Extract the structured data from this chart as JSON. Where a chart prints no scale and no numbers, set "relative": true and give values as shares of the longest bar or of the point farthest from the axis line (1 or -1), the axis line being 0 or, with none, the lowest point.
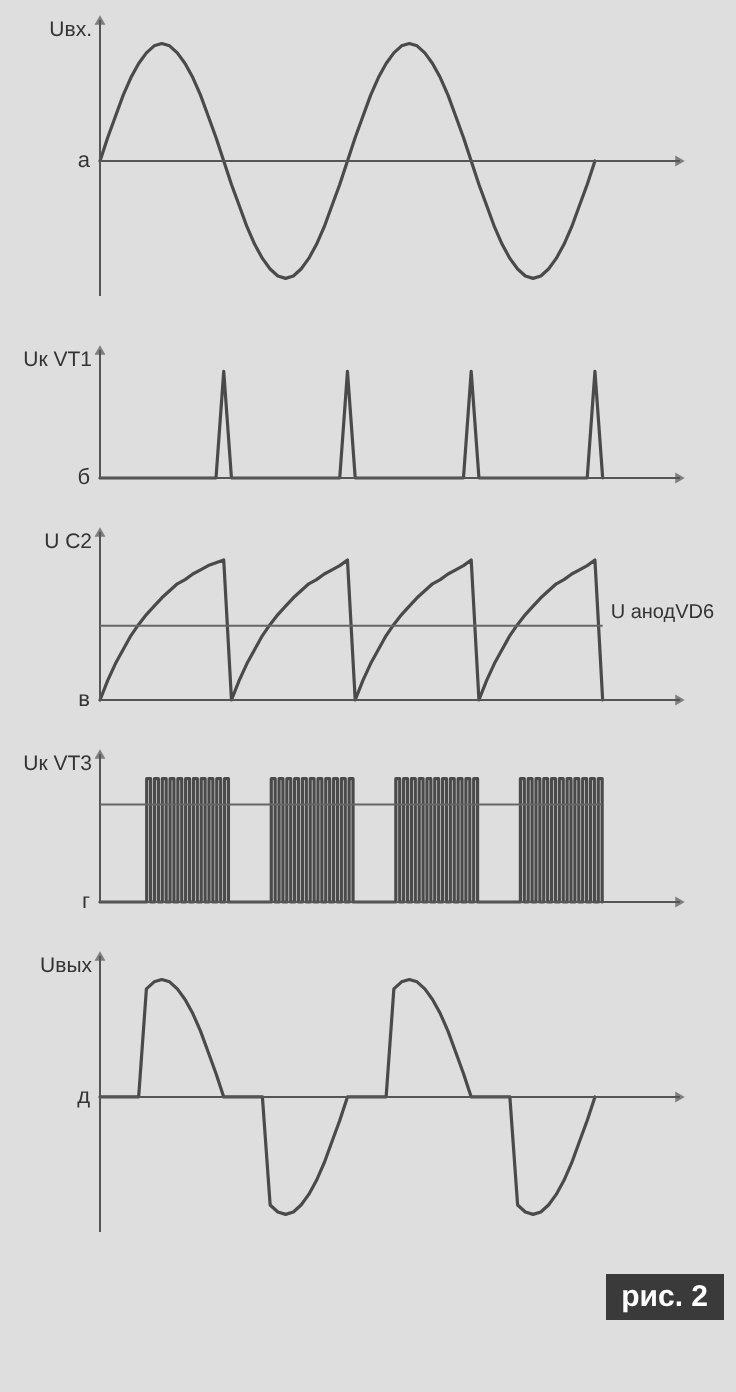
{
  "chart_data": [
    {
      "type": "line",
      "ylabel": "Uвх.",
      "annotations": [
        "а"
      ],
      "relative": true,
      "tick_labels": false,
      "categories": [
        null,
        null,
        null,
        null,
        null,
        null,
        null,
        null,
        null,
        null,
        null,
        null,
        null,
        null,
        null,
        null,
        null,
        null,
        null,
        null,
        null,
        null,
        null,
        null,
        null,
        null,
        null,
        null,
        null,
        null,
        null,
        null,
        null,
        null,
        null,
        null,
        null,
        null,
        null,
        null,
        null,
        null,
        null,
        null,
        null,
        null,
        null,
        null,
        null,
        null,
        null,
        null,
        null,
        null,
        null,
        null,
        null,
        null,
        null,
        null,
        null,
        null,
        null,
        null,
        null,
        null,
        null,
        null,
        null,
        null,
        null,
        null,
        null,
        null,
        null,
        null
      ],
      "series": [
        {
          "color": "#4a4a4a",
          "values": [
            0,
            0.2,
            0.38,
            0.56,
            0.71,
            0.83,
            0.92,
            0.98,
            1,
            0.98,
            0.92,
            0.83,
            0.71,
            0.56,
            0.38,
            0.2,
            0,
            -0.2,
            -0.38,
            -0.56,
            -0.71,
            -0.83,
            -0.92,
            -0.98,
            -1,
            -0.98,
            -0.92,
            -0.83,
            -0.71,
            -0.56,
            -0.38,
            -0.2,
            0,
            0.2,
            0.38,
            0.56,
            0.71,
            0.83,
            0.92,
            0.98,
            1,
            0.98,
            0.92,
            0.83,
            0.71,
            0.56,
            0.38,
            0.2,
            0,
            -0.2,
            -0.38,
            -0.56,
            -0.71,
            -0.83,
            -0.92,
            -0.98,
            -1,
            -0.98,
            -0.92,
            -0.83,
            -0.71,
            -0.56,
            -0.38,
            -0.2,
            0,
            null,
            null,
            null,
            null,
            null,
            null,
            null,
            null,
            null,
            null,
            null
          ]
        }
      ]
    },
    {
      "type": "line",
      "ylabel": "Uк VT1",
      "annotations": [
        "б"
      ],
      "relative": true,
      "tick_labels": false,
      "categories": [
        null,
        null,
        null,
        null,
        null,
        null,
        null,
        null,
        null,
        null,
        null,
        null,
        null,
        null,
        null,
        null,
        null,
        null,
        null,
        null,
        null,
        null,
        null,
        null,
        null,
        null,
        null,
        null,
        null,
        null,
        null,
        null,
        null,
        null,
        null,
        null,
        null,
        null,
        null,
        null,
        null,
        null,
        null,
        null,
        null,
        null,
        null,
        null,
        null,
        null,
        null,
        null,
        null,
        null,
        null,
        null,
        null,
        null,
        null,
        null,
        null,
        null,
        null,
        null,
        null,
        null,
        null,
        null,
        null,
        null,
        null,
        null,
        null,
        null,
        null,
        null
      ],
      "series": [
        {
          "color": "#4a4a4a",
          "values": [
            0,
            0,
            0,
            0,
            0,
            0,
            0,
            0,
            0,
            0,
            0,
            0,
            0,
            0,
            0,
            0,
            1,
            0,
            0,
            0,
            0,
            0,
            0,
            0,
            0,
            0,
            0,
            0,
            0,
            0,
            0,
            0,
            1,
            0,
            0,
            0,
            0,
            0,
            0,
            0,
            0,
            0,
            0,
            0,
            0,
            0,
            0,
            0,
            1,
            0,
            0,
            0,
            0,
            0,
            0,
            0,
            0,
            0,
            0,
            0,
            0,
            0,
            0,
            0,
            1,
            0,
            null,
            null,
            null,
            null,
            null,
            null,
            null,
            null,
            null,
            null
          ]
        }
      ]
    },
    {
      "type": "line",
      "ylabel": "U C2",
      "annotations": [
        "в"
      ],
      "relative": true,
      "tick_labels": false,
      "ref_lines": [
        {
          "axis": "y",
          "value": 0.53,
          "label": "U анодVD6"
        }
      ],
      "categories": [
        null,
        null,
        null,
        null,
        null,
        null,
        null,
        null,
        null,
        null,
        null,
        null,
        null,
        null,
        null,
        null,
        null,
        null,
        null,
        null,
        null,
        null,
        null,
        null,
        null,
        null,
        null,
        null,
        null,
        null,
        null,
        null,
        null,
        null,
        null,
        null,
        null,
        null,
        null,
        null,
        null,
        null,
        null,
        null,
        null,
        null,
        null,
        null,
        null,
        null,
        null,
        null,
        null,
        null,
        null,
        null,
        null,
        null,
        null,
        null,
        null,
        null,
        null,
        null,
        null,
        null,
        null,
        null,
        null,
        null,
        null,
        null,
        null,
        null,
        null,
        null
      ],
      "series": [
        {
          "color": "#4a4a4a",
          "values": [
            0,
            0.14,
            0.26,
            0.36,
            0.46,
            0.54,
            0.61,
            0.67,
            0.73,
            0.78,
            0.83,
            0.86,
            0.9,
            0.93,
            0.96,
            0.98,
            1,
            0,
            0.14,
            0.26,
            0.36,
            0.46,
            0.54,
            0.61,
            0.67,
            0.73,
            0.78,
            0.83,
            0.86,
            0.9,
            0.93,
            0.96,
            1,
            0,
            0.14,
            0.26,
            0.36,
            0.46,
            0.54,
            0.61,
            0.67,
            0.73,
            0.78,
            0.83,
            0.86,
            0.9,
            0.93,
            0.96,
            1,
            0,
            0.14,
            0.26,
            0.36,
            0.46,
            0.54,
            0.61,
            0.67,
            0.73,
            0.78,
            0.83,
            0.86,
            0.9,
            0.93,
            0.96,
            1,
            0,
            null,
            null,
            null,
            null,
            null,
            null,
            null,
            null,
            null,
            null
          ]
        }
      ]
    },
    {
      "type": "step",
      "ylabel": "Uк VT3",
      "annotations": [
        "г"
      ],
      "relative": true,
      "tick_labels": false,
      "ref_lines": [
        {
          "axis": "y",
          "value": 0.79
        }
      ],
      "categories": [
        null,
        null,
        null,
        null,
        null,
        null,
        null,
        null,
        null,
        null,
        null,
        null,
        null,
        null,
        null,
        null,
        null,
        null,
        null,
        null,
        null,
        null,
        null,
        null,
        null,
        null,
        null,
        null,
        null,
        null,
        null,
        null,
        null,
        null,
        null,
        null,
        null,
        null,
        null,
        null,
        null,
        null,
        null,
        null,
        null,
        null,
        null,
        null,
        null,
        null,
        null,
        null,
        null,
        null,
        null,
        null,
        null,
        null,
        null,
        null,
        null,
        null,
        null,
        null,
        null,
        null,
        null,
        null,
        null,
        null,
        null,
        null,
        null,
        null,
        null,
        null,
        null,
        null,
        null,
        null,
        null,
        null,
        null,
        null,
        null,
        null,
        null,
        null,
        null,
        null,
        null,
        null,
        null,
        null,
        null,
        null,
        null,
        null,
        null,
        null,
        null,
        null,
        null,
        null,
        null,
        null,
        null,
        null,
        null,
        null,
        null,
        null,
        null,
        null,
        null,
        null,
        null,
        null,
        null,
        null,
        null,
        null,
        null,
        null,
        null,
        null,
        null,
        null,
        null,
        null,
        null,
        null,
        null,
        null,
        null,
        null,
        null,
        null,
        null,
        null,
        null,
        null,
        null,
        null,
        null,
        null,
        null,
        null,
        null,
        null
      ],
      "series": [
        {
          "color": "#4a4a4a",
          "values": [
            0,
            0,
            0,
            0,
            0,
            0,
            0,
            0,
            0,
            0,
            0,
            0,
            1,
            0,
            1,
            0,
            1,
            0,
            1,
            0,
            1,
            0,
            1,
            0,
            1,
            0,
            1,
            0,
            1,
            0,
            1,
            0,
            1,
            0,
            0,
            0,
            0,
            0,
            0,
            0,
            0,
            0,
            0,
            0,
            1,
            0,
            1,
            0,
            1,
            0,
            1,
            0,
            1,
            0,
            1,
            0,
            1,
            0,
            1,
            0,
            1,
            0,
            1,
            0,
            1,
            0,
            0,
            0,
            0,
            0,
            0,
            0,
            0,
            0,
            0,
            0,
            1,
            0,
            1,
            0,
            1,
            0,
            1,
            0,
            1,
            0,
            1,
            0,
            1,
            0,
            1,
            0,
            1,
            0,
            1,
            0,
            1,
            0,
            0,
            0,
            0,
            0,
            0,
            0,
            0,
            0,
            0,
            0,
            1,
            0,
            1,
            0,
            1,
            0,
            1,
            0,
            1,
            0,
            1,
            0,
            1,
            0,
            1,
            0,
            1,
            0,
            1,
            0,
            1,
            0,
            null,
            null,
            null,
            null,
            null,
            null,
            null,
            null,
            null,
            null,
            null,
            null,
            null,
            null,
            null,
            null,
            null,
            null,
            null,
            null
          ]
        }
      ]
    },
    {
      "type": "line",
      "ylabel": "Uвых",
      "annotations": [
        "д",
        "рис. 2"
      ],
      "relative": true,
      "tick_labels": false,
      "categories": [
        null,
        null,
        null,
        null,
        null,
        null,
        null,
        null,
        null,
        null,
        null,
        null,
        null,
        null,
        null,
        null,
        null,
        null,
        null,
        null,
        null,
        null,
        null,
        null,
        null,
        null,
        null,
        null,
        null,
        null,
        null,
        null,
        null,
        null,
        null,
        null,
        null,
        null,
        null,
        null,
        null,
        null,
        null,
        null,
        null,
        null,
        null,
        null,
        null,
        null,
        null,
        null,
        null,
        null,
        null,
        null,
        null,
        null,
        null,
        null,
        null,
        null,
        null,
        null,
        null,
        null,
        null,
        null,
        null,
        null,
        null,
        null,
        null,
        null,
        null,
        null
      ],
      "series": [
        {
          "color": "#4a4a4a",
          "values": [
            0,
            0,
            0,
            0,
            0,
            0,
            0.92,
            0.98,
            1,
            0.98,
            0.92,
            0.83,
            0.71,
            0.56,
            0.38,
            0.2,
            0,
            0,
            0,
            0,
            0,
            0,
            -0.92,
            -0.98,
            -1,
            -0.98,
            -0.92,
            -0.83,
            -0.71,
            -0.56,
            -0.38,
            -0.2,
            0,
            0,
            0,
            0,
            0,
            0,
            0.92,
            0.98,
            1,
            0.98,
            0.92,
            0.83,
            0.71,
            0.56,
            0.38,
            0.2,
            0,
            0,
            0,
            0,
            0,
            0,
            -0.92,
            -0.98,
            -1,
            -0.98,
            -0.92,
            -0.83,
            -0.71,
            -0.56,
            -0.38,
            -0.2,
            0,
            null,
            null,
            null,
            null,
            null,
            null,
            null,
            null,
            null,
            null,
            null
          ]
        }
      ]
    }
  ]
}
